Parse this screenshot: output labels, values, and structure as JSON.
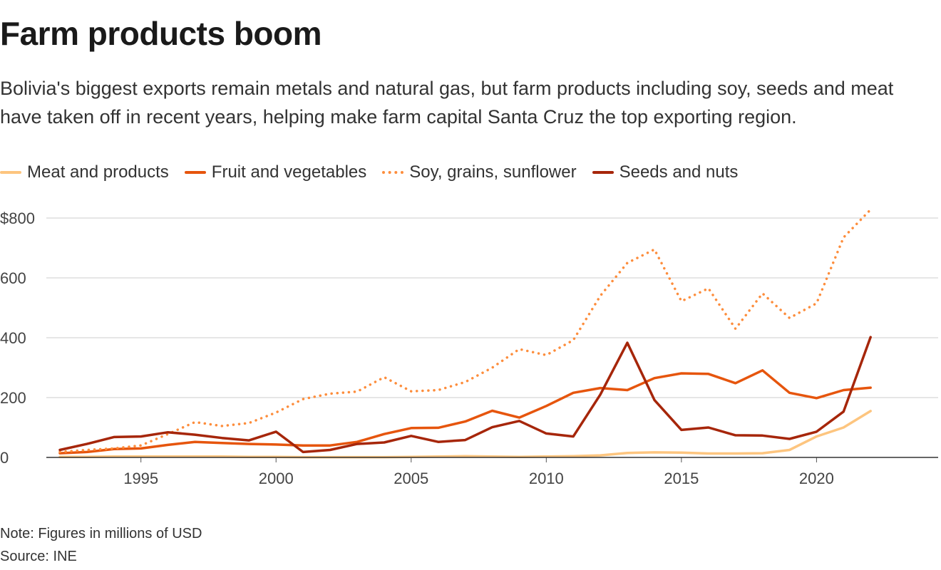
{
  "chart_data": {
    "type": "line",
    "title": "Farm products boom",
    "subtitle": "Bolivia's biggest exports remain metals and natural gas, but farm products including soy, seeds and meat have taken off in recent years, helping make farm capital Santa Cruz the top exporting region.",
    "x": [
      1992,
      1993,
      1994,
      1995,
      1996,
      1997,
      1998,
      1999,
      2000,
      2001,
      2002,
      2003,
      2004,
      2005,
      2006,
      2007,
      2008,
      2009,
      2010,
      2011,
      2012,
      2013,
      2014,
      2015,
      2016,
      2017,
      2018,
      2019,
      2020,
      2021,
      2022
    ],
    "xlim": [
      1991.5,
      2024.5
    ],
    "xticks": [
      1995,
      2000,
      2005,
      2010,
      2015,
      2020
    ],
    "ylim": [
      0,
      800
    ],
    "yticks": [
      0,
      200,
      400,
      600,
      800
    ],
    "ytick_labels": [
      "0",
      "200",
      "400",
      "600",
      "$800"
    ],
    "grid": true,
    "legend_position": "top-left",
    "series": [
      {
        "name": "Meat and products",
        "color": "#fdc57f",
        "style": "solid",
        "values": [
          2,
          2,
          3,
          3,
          3,
          3,
          3,
          2,
          2,
          1,
          1,
          1,
          1,
          2,
          3,
          4,
          3,
          2,
          3,
          4,
          7,
          15,
          17,
          16,
          13,
          13,
          14,
          25,
          70,
          100,
          155
        ]
      },
      {
        "name": "Fruit and vegetables",
        "color": "#e6550d",
        "style": "solid",
        "values": [
          14,
          18,
          28,
          30,
          42,
          52,
          48,
          45,
          43,
          40,
          40,
          52,
          78,
          98,
          99,
          120,
          156,
          133,
          172,
          216,
          232,
          225,
          265,
          281,
          279,
          248,
          291,
          216,
          198,
          225,
          233
        ]
      },
      {
        "name": "Soy, grains, sunflower",
        "color": "#fd8d3c",
        "style": "dotted",
        "values": [
          18,
          25,
          30,
          40,
          78,
          118,
          105,
          115,
          150,
          195,
          213,
          220,
          268,
          221,
          225,
          252,
          300,
          362,
          342,
          392,
          540,
          650,
          695,
          522,
          565,
          430,
          548,
          466,
          515,
          735,
          828
        ]
      },
      {
        "name": "Seeds and nuts",
        "color": "#a6260a",
        "style": "solid",
        "values": [
          25,
          45,
          68,
          70,
          84,
          76,
          65,
          57,
          86,
          18,
          25,
          45,
          50,
          72,
          52,
          58,
          101,
          122,
          80,
          70,
          210,
          383,
          192,
          92,
          100,
          74,
          73,
          62,
          86,
          153,
          402
        ]
      }
    ],
    "note": "Note: Figures in millions of USD",
    "source": "Source: INE"
  }
}
